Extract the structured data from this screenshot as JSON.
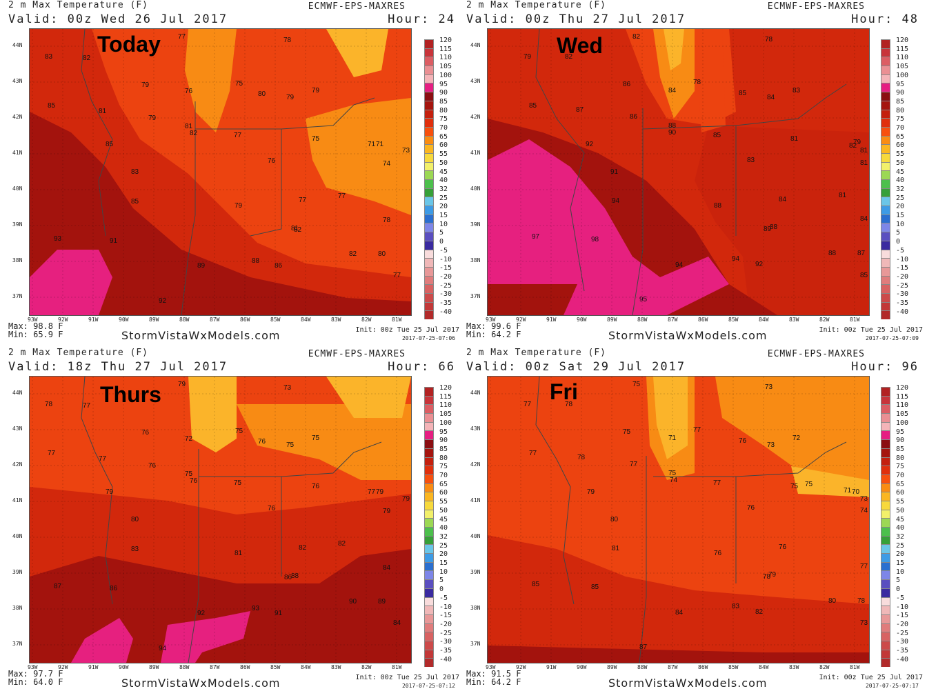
{
  "panels": [
    {
      "title": "2 m Max Temperature (F)",
      "valid": "Valid: 00z Wed 26 Jul 2017",
      "model": "ECMWF-EPS-MAXRES",
      "hour": "Hour: 24",
      "day_label": "Today",
      "max": "Max: 98.8 F",
      "min": "Min: 65.9 F",
      "watermark": "StormVistaWxModels.com",
      "init": "Init: 00z Tue 25 Jul 2017",
      "stamp": "2017-07-25-07:06",
      "values": [
        "77",
        "78",
        "83",
        "82",
        "79",
        "76",
        "75",
        "80",
        "79",
        "79",
        "85",
        "81",
        "79",
        "81",
        "82",
        "77",
        "76",
        "75",
        "85",
        "83",
        "85",
        "79",
        "77",
        "77",
        "78",
        "82",
        "81",
        "93",
        "91",
        "82",
        "80",
        "89",
        "88",
        "86",
        "77",
        "92",
        "71",
        "71",
        "73",
        "74"
      ]
    },
    {
      "title": "2 m Max Temperature (F)",
      "valid": "Valid: 00z Thu 27 Jul 2017",
      "model": "ECMWF-EPS-MAXRES",
      "hour": "Hour: 48",
      "day_label": "Wed",
      "max": "Max: 99.6 F",
      "min": "Min: 64.2 F",
      "watermark": "StormVistaWxModels.com",
      "init": "Init: 00z Tue 25 Jul 2017",
      "stamp": "2017-07-25-07:09",
      "values": [
        "82",
        "78",
        "79",
        "82",
        "86",
        "84",
        "78",
        "85",
        "84",
        "83",
        "85",
        "87",
        "86",
        "88",
        "90",
        "85",
        "81",
        "82",
        "79",
        "81",
        "92",
        "83",
        "81",
        "91",
        "94",
        "88",
        "84",
        "81",
        "84",
        "89",
        "88",
        "97",
        "98",
        "94",
        "94",
        "92",
        "88",
        "87",
        "95",
        "85"
      ]
    },
    {
      "title": "2 m Max Temperature (F)",
      "valid": "Valid: 18z Thu 27 Jul 2017",
      "model": "ECMWF-EPS-MAXRES",
      "hour": "Hour: 66",
      "day_label": "Thurs",
      "max": "Max: 97.7 F",
      "min": "Min: 64.0 F",
      "watermark": "StormVistaWxModels.com",
      "init": "Init: 00z Tue 25 Jul 2017",
      "stamp": "2017-07-25-07:12",
      "values": [
        "79",
        "73",
        "78",
        "77",
        "76",
        "72",
        "75",
        "76",
        "75",
        "75",
        "77",
        "77",
        "76",
        "75",
        "76",
        "75",
        "76",
        "77",
        "79",
        "79",
        "79",
        "76",
        "79",
        "80",
        "83",
        "81",
        "82",
        "82",
        "84",
        "86",
        "88",
        "87",
        "86",
        "90",
        "89",
        "92",
        "93",
        "91",
        "84",
        "94"
      ]
    },
    {
      "title": "2 m Max Temperature (F)",
      "valid": "Valid: 00z Sat 29 Jul 2017",
      "model": "ECMWF-EPS-MAXRES",
      "hour": "Hour: 96",
      "day_label": "Fri",
      "max": "Max: 91.5 F",
      "min": "Min: 64.2 F",
      "watermark": "StormVistaWxModels.com",
      "init": "Init: 00z Tue 25 Jul 2017",
      "stamp": "2017-07-25-07:17",
      "values": [
        "75",
        "73",
        "77",
        "78",
        "75",
        "71",
        "77",
        "76",
        "73",
        "72",
        "77",
        "78",
        "77",
        "75",
        "74",
        "77",
        "75",
        "75",
        "71",
        "70",
        "73",
        "79",
        "76",
        "74",
        "80",
        "81",
        "76",
        "76",
        "77",
        "78",
        "79",
        "85",
        "85",
        "80",
        "78",
        "84",
        "83",
        "82",
        "73",
        "87"
      ]
    }
  ],
  "legend": {
    "labels": [
      "120",
      "115",
      "110",
      "105",
      "100",
      "95",
      "90",
      "85",
      "80",
      "75",
      "70",
      "65",
      "60",
      "55",
      "50",
      "45",
      "40",
      "32",
      "25",
      "20",
      "15",
      "10",
      "5",
      "0",
      "-5",
      "-10",
      "-15",
      "-20",
      "-25",
      "-30",
      "-35",
      "-40"
    ],
    "colors": [
      "#b22222",
      "#c8343a",
      "#dc5d63",
      "#ea8f93",
      "#f4b4b8",
      "#e61e82",
      "#8b0e12",
      "#a5150f",
      "#c4200e",
      "#e02f0c",
      "#f7500e",
      "#fa8c12",
      "#fbb620",
      "#f7d93c",
      "#f2f06a",
      "#9cd854",
      "#4cc04c",
      "#36a038",
      "#6ac6e8",
      "#3d9be6",
      "#2a6fd0",
      "#7d86e8",
      "#5a4ec0",
      "#3a2aa0",
      "#f8dcdc",
      "#f0b8b8",
      "#e89898",
      "#e07c7c",
      "#d86262",
      "#cc4a4a",
      "#c23838",
      "#b22a2a"
    ]
  },
  "axes": {
    "lon_labels": [
      "93W",
      "92W",
      "91W",
      "90W",
      "89W",
      "88W",
      "87W",
      "86W",
      "85W",
      "84W",
      "83W",
      "82W",
      "81W"
    ],
    "lat_labels": [
      "44N",
      "43N",
      "42N",
      "41N",
      "40N",
      "39N",
      "38N",
      "37N"
    ]
  },
  "colors": {
    "deep_red": "#a3130d",
    "red": "#d2280c",
    "orange_red": "#ec4310",
    "orange": "#f88b14",
    "light_orange": "#fbb42a",
    "magenta": "#e6207f"
  }
}
